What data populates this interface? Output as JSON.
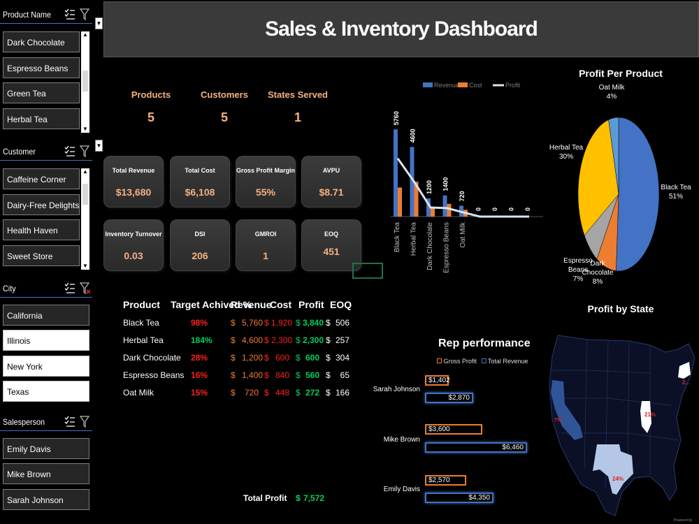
{
  "header": {
    "title": "Sales & Inventory Dashboard"
  },
  "slicers": {
    "product": {
      "title": "Product Name",
      "items": [
        "Dark Chocolate",
        "Espresso Beans",
        "Green Tea",
        "Herbal Tea"
      ]
    },
    "customer": {
      "title": "Customer",
      "items": [
        "Caffeine Corner",
        "Dairy-Free Delights",
        "Health Haven",
        "Sweet Store"
      ]
    },
    "city": {
      "title": "City",
      "items": [
        "California",
        "Illinois",
        "New York",
        "Texas"
      ],
      "selected": [
        "Illinois",
        "New York",
        "Texas"
      ]
    },
    "salesperson": {
      "title": "Salesperson",
      "items": [
        "Emily Davis",
        "Mike Brown",
        "Sarah Johnson"
      ]
    }
  },
  "counts": [
    {
      "label": "Products",
      "value": "5"
    },
    {
      "label": "Customers",
      "value": "5"
    },
    {
      "label": "States Served",
      "value": "1"
    }
  ],
  "kpis": [
    {
      "title": "Total Revenue",
      "value": "$13,680"
    },
    {
      "title": "Total Cost",
      "value": "$6,108"
    },
    {
      "title": "Gross Profit Margin",
      "value": "55%"
    },
    {
      "title": "AVPU",
      "value": "$8.71"
    },
    {
      "title": "Inventory Turnover",
      "value": "0.03"
    },
    {
      "title": "DSI",
      "value": "206"
    },
    {
      "title": "GMROI",
      "value": "1"
    },
    {
      "title": "EOQ",
      "value": "451"
    }
  ],
  "table": {
    "headers": [
      "Product",
      "Target Achived %",
      "Revenue",
      "Cost",
      "Profit",
      "EOQ"
    ],
    "rows": [
      {
        "product": "Black Tea",
        "target": "98%",
        "revenue": "5,760",
        "cost": "1,920",
        "profit": "3,840",
        "eoq": "506"
      },
      {
        "product": "Herbal Tea",
        "target": "184%",
        "revenue": "4,600",
        "cost": "2,300",
        "profit": "2,300",
        "eoq": "257"
      },
      {
        "product": "Dark Chocolate",
        "target": "28%",
        "revenue": "1,200",
        "cost": "600",
        "profit": "600",
        "eoq": "304"
      },
      {
        "product": "Espresso Beans",
        "target": "16%",
        "revenue": "1,400",
        "cost": "840",
        "profit": "560",
        "eoq": "65"
      },
      {
        "product": "Oat Milk",
        "target": "15%",
        "revenue": "720",
        "cost": "448",
        "profit": "272",
        "eoq": "166"
      }
    ],
    "currency": "$",
    "total_label": "Total Profit",
    "total_value": "7,572"
  },
  "rep": {
    "title": "Rep performance",
    "legend": [
      "Gross Profit",
      "Total Revenue"
    ],
    "reps": [
      {
        "name": "Sarah Johnson",
        "gp": "$1,402",
        "rev": "$2,870"
      },
      {
        "name": "Mike Brown",
        "gp": "$3,600",
        "rev": "$6,460"
      },
      {
        "name": "Emily Davis",
        "gp": "$2,570",
        "rev": "$4,350"
      }
    ]
  },
  "map": {
    "title": "Profit by State",
    "labels": [
      "2...",
      "21%",
      "24%",
      "?%"
    ],
    "footer": "Powered by"
  },
  "chart_data": [
    {
      "type": "bar",
      "legend": [
        "Revenue",
        "Cost",
        "Profit"
      ],
      "categories": [
        "Black Tea",
        "Herbal Tea",
        "Dark Chocolate",
        "Espresso Beans",
        "Oat Milk",
        "",
        "",
        "",
        ""
      ],
      "series": [
        {
          "name": "Revenue",
          "color": "#4472c4",
          "values": [
            5760,
            4600,
            1200,
            1400,
            720,
            0,
            0,
            0,
            0
          ]
        },
        {
          "name": "Cost",
          "color": "#ed7d31",
          "values": [
            1920,
            2300,
            600,
            840,
            448,
            0,
            0,
            0,
            0
          ]
        },
        {
          "name": "Profit",
          "color": "#dae3f3",
          "values": [
            3840,
            2300,
            600,
            560,
            272,
            0,
            0,
            0,
            0
          ]
        }
      ],
      "data_labels": [
        "5760",
        "4600",
        "1200",
        "1400",
        "720",
        "0",
        "0",
        "0",
        "0"
      ]
    },
    {
      "type": "pie",
      "title": "Profit Per Product",
      "slices": [
        {
          "label": "Black Tea",
          "value": 51,
          "color": "#4472c4"
        },
        {
          "label": "Dark Chocolate",
          "value": 8,
          "color": "#ed7d31"
        },
        {
          "label": "Espresso Beans",
          "value": 7,
          "color": "#a5a5a5"
        },
        {
          "label": "Herbal Tea",
          "value": 30,
          "color": "#ffc000"
        },
        {
          "label": "Oat Milk",
          "value": 4,
          "color": "#5b9bd5"
        }
      ],
      "slice_labels": [
        {
          "name": "Black Tea",
          "pct": "51%"
        },
        {
          "name": "Dark Chocolate",
          "pct": "8%"
        },
        {
          "name": "Espresso Beans",
          "pct": "7%"
        },
        {
          "name": "Herbal Tea",
          "pct": "30%"
        },
        {
          "name": "Oat Milk",
          "pct": "4%"
        }
      ]
    }
  ]
}
